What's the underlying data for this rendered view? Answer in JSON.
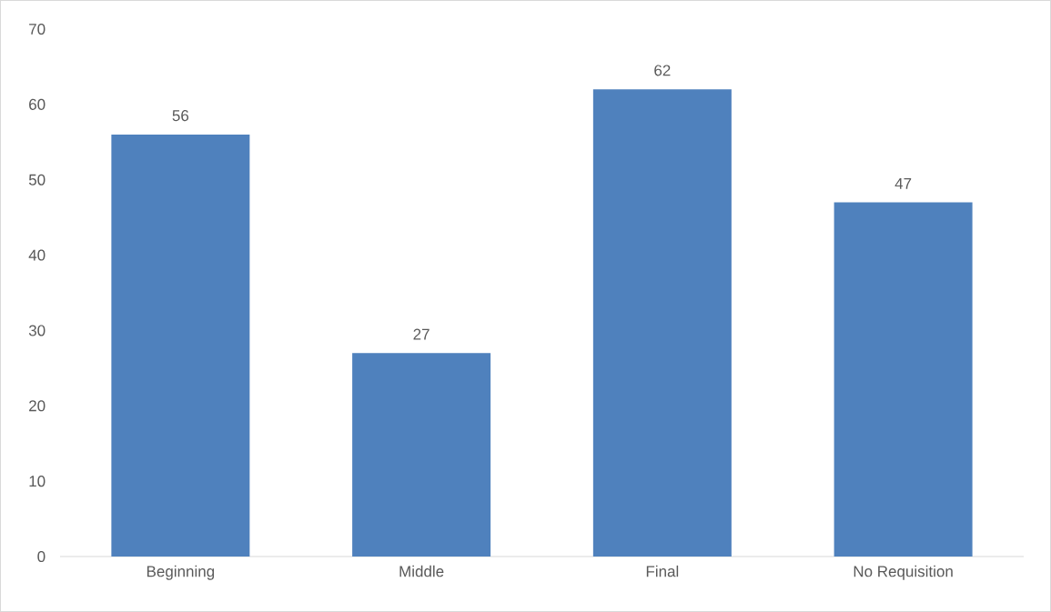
{
  "chart_data": {
    "type": "bar",
    "categories": [
      "Beginning",
      "Middle",
      "Final",
      "No Requisition"
    ],
    "values": [
      56,
      27,
      62,
      47
    ],
    "color": "#4f81bd",
    "ylim": [
      0,
      70
    ],
    "yticks": [
      0,
      10,
      20,
      30,
      40,
      50,
      60,
      70
    ],
    "data_labels": true,
    "grid": false
  }
}
